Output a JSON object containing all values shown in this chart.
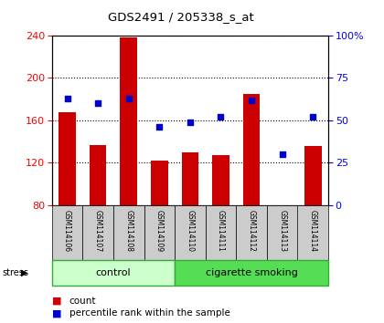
{
  "title": "GDS2491 / 205338_s_at",
  "samples": [
    "GSM114106",
    "GSM114107",
    "GSM114108",
    "GSM114109",
    "GSM114110",
    "GSM114111",
    "GSM114112",
    "GSM114113",
    "GSM114114"
  ],
  "counts": [
    168,
    137,
    238,
    122,
    130,
    127,
    185,
    80,
    136
  ],
  "percentile_ranks": [
    63,
    60,
    63,
    46,
    49,
    52,
    62,
    30,
    52
  ],
  "groups": [
    {
      "label": "control",
      "indices": [
        0,
        1,
        2,
        3
      ],
      "color": "#ccffcc"
    },
    {
      "label": "cigarette smoking",
      "indices": [
        4,
        5,
        6,
        7,
        8
      ],
      "color": "#55dd55"
    }
  ],
  "left_ylim": [
    80,
    240
  ],
  "left_yticks": [
    80,
    120,
    160,
    200,
    240
  ],
  "right_ylim": [
    0,
    100
  ],
  "right_yticks": [
    0,
    25,
    50,
    75,
    100
  ],
  "right_yticklabels": [
    "0",
    "25",
    "50",
    "75",
    "100%"
  ],
  "bar_color": "#cc0000",
  "dot_color": "#0000cc",
  "bar_bottom": 80,
  "bar_width": 0.55,
  "bg_color": "#ffffff",
  "plot_bg": "#ffffff"
}
